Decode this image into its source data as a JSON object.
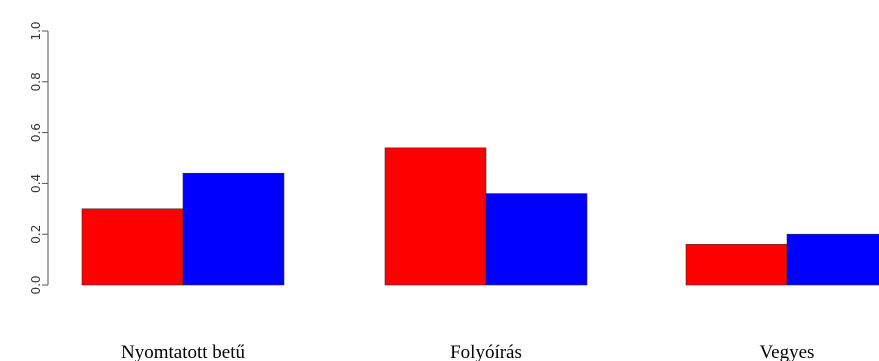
{
  "chart_data": {
    "type": "bar",
    "title": "",
    "xlabel": "",
    "ylabel": "",
    "categories": [
      "Nyomtatott betű",
      "Folyóírás",
      "Vegyes"
    ],
    "series": [
      {
        "color": "#ff0000",
        "values": [
          0.3,
          0.54,
          0.16
        ]
      },
      {
        "color": "#0000ff",
        "values": [
          0.44,
          0.36,
          0.2
        ]
      }
    ],
    "yticks": [
      "0.0",
      "0.2",
      "0.4",
      "0.6",
      "0.8",
      "1.0"
    ],
    "ylim": [
      0,
      1
    ],
    "grid": false,
    "legend": "none"
  }
}
